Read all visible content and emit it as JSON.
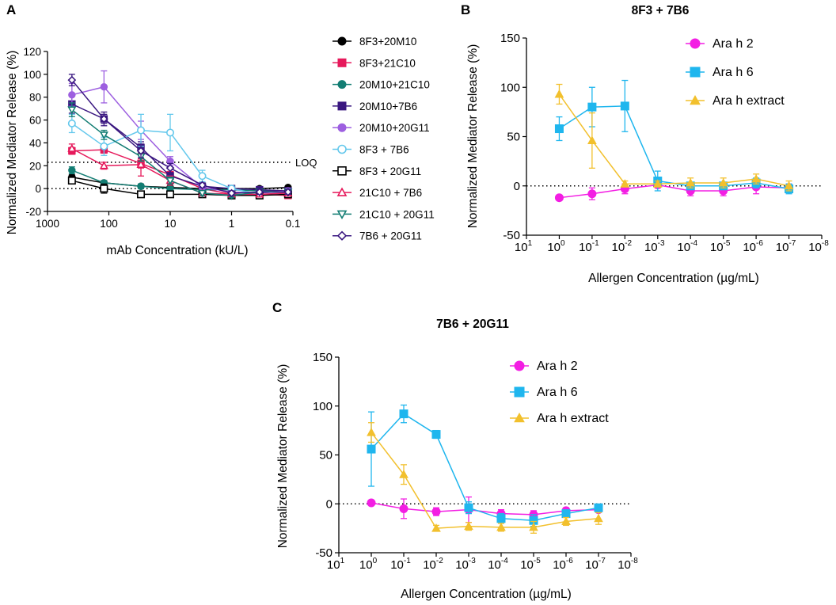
{
  "chart_data": [
    {
      "panel": "A",
      "type": "line",
      "title": "",
      "xlabel": "mAb Concentration (kU/L)",
      "ylabel": "Normalized Mediator Release (%)",
      "xscale": "log-reversed",
      "xlim": [
        1000,
        0.1
      ],
      "ylim": [
        -20,
        120
      ],
      "x_ticks": [
        1000,
        100,
        10,
        1,
        0.1
      ],
      "x_tick_labels": [
        "1000",
        "100",
        "10",
        "1",
        "0.1"
      ],
      "y_ticks": [
        -20,
        0,
        20,
        40,
        60,
        80,
        100,
        120
      ],
      "y_tick_labels": [
        "-20",
        "0",
        "20",
        "40",
        "60",
        "80",
        "100",
        "120"
      ],
      "reference_lines": [
        {
          "y": 0,
          "label": ""
        },
        {
          "y": 23,
          "label": "LOQ"
        }
      ],
      "x": [
        400,
        120,
        30,
        10,
        3,
        1,
        0.35,
        0.12
      ],
      "series": [
        {
          "name": "8F3+20M10",
          "color": "#000000",
          "marker": "circle-filled",
          "values": [
            10,
            5,
            2,
            1,
            0,
            0,
            0,
            1
          ],
          "errors": [
            2,
            2,
            1,
            1,
            1,
            1,
            1,
            1
          ]
        },
        {
          "name": "8F3+21C10",
          "color": "#e6195b",
          "marker": "square-filled",
          "values": [
            33,
            34,
            22,
            12,
            0,
            -5,
            -5,
            -6
          ],
          "errors": [
            3,
            3,
            4,
            3,
            2,
            2,
            2,
            2
          ]
        },
        {
          "name": "20M10+21C10",
          "color": "#137d73",
          "marker": "circle-filled",
          "values": [
            16,
            5,
            2,
            0,
            -1,
            -1,
            -2,
            -2
          ],
          "errors": [
            3,
            2,
            2,
            1,
            1,
            1,
            1,
            1
          ]
        },
        {
          "name": "20M10+7B6",
          "color": "#3a1780",
          "marker": "square-filled",
          "values": [
            74,
            61,
            36,
            11,
            2,
            0,
            -1,
            -2
          ],
          "errors": [
            8,
            6,
            5,
            3,
            2,
            2,
            1,
            1
          ]
        },
        {
          "name": "20M10+20G11",
          "color": "#9d5fe0",
          "marker": "circle-filled",
          "values": [
            82,
            89,
            51,
            24,
            1,
            -3,
            -4,
            -2
          ],
          "errors": [
            10,
            14,
            8,
            4,
            3,
            2,
            2,
            2
          ]
        },
        {
          "name": "8F3 + 7B6",
          "color": "#64c8ec",
          "marker": "circle-open",
          "values": [
            57,
            37,
            51,
            49,
            11,
            0,
            -5,
            -4
          ],
          "errors": [
            8,
            8,
            14,
            16,
            5,
            2,
            2,
            2
          ]
        },
        {
          "name": "8F3 + 20G11",
          "color": "#000000",
          "marker": "square-open",
          "values": [
            7,
            0,
            -5,
            -5,
            -5,
            -6,
            -6,
            -5
          ],
          "errors": [
            2,
            4,
            2,
            2,
            2,
            2,
            2,
            2
          ]
        },
        {
          "name": "21C10 + 7B6",
          "color": "#e6195b",
          "marker": "triangle-open",
          "values": [
            35,
            20,
            21,
            7,
            -4,
            -5,
            -5,
            -4
          ],
          "errors": [
            4,
            3,
            10,
            4,
            2,
            2,
            2,
            2
          ]
        },
        {
          "name": "21C10 + 20G11",
          "color": "#137d73",
          "marker": "triangle-down-open",
          "values": [
            69,
            47,
            28,
            7,
            -4,
            -6,
            -3,
            -3
          ],
          "errors": [
            6,
            4,
            4,
            3,
            2,
            2,
            2,
            2
          ]
        },
        {
          "name": "7B6 + 20G11",
          "color": "#3a1780",
          "marker": "diamond-open",
          "values": [
            95,
            61,
            33,
            18,
            3,
            -4,
            -3,
            -3
          ],
          "errors": [
            5,
            4,
            6,
            4,
            2,
            2,
            2,
            2
          ]
        }
      ]
    },
    {
      "panel": "B",
      "type": "line",
      "title": "8F3 + 7B6",
      "xlabel": "Allergen Concentration (µg/mL)",
      "ylabel": "Normalized Mediator Release (%)",
      "xscale": "log-reversed",
      "ylim": [
        -50,
        150
      ],
      "x_ticks": [
        1,
        0,
        -1,
        -2,
        -3,
        -4,
        -5,
        -6,
        -7,
        -8
      ],
      "x_tick_labels": [
        "10",
        "10",
        "10",
        "10",
        "10",
        "10",
        "10",
        "10",
        "10",
        "10"
      ],
      "x_tick_exponents": [
        "1",
        "0",
        "-1",
        "-2",
        "-3",
        "-4",
        "-5",
        "-6",
        "-7",
        "-8"
      ],
      "y_ticks": [
        -50,
        0,
        50,
        100,
        150
      ],
      "y_tick_labels": [
        "-50",
        "0",
        "50",
        "100",
        "150"
      ],
      "x": [
        0,
        -1,
        -2,
        -3,
        -4,
        -5,
        -6,
        -7
      ],
      "series": [
        {
          "name": "Ara h 2",
          "color": "#f31ee3",
          "marker": "circle-filled",
          "values": [
            -12,
            -8,
            -3,
            1,
            -5,
            -5,
            -1,
            -2
          ],
          "errors": [
            2,
            6,
            5,
            3,
            5,
            5,
            7,
            4
          ]
        },
        {
          "name": "Ara h 6",
          "color": "#1fb6ee",
          "marker": "square-filled",
          "values": [
            58,
            80,
            81,
            5,
            0,
            0,
            3,
            -3
          ],
          "errors": [
            12,
            20,
            26,
            10,
            3,
            3,
            5,
            5
          ]
        },
        {
          "name": "Ara h extract",
          "color": "#f2c02d",
          "marker": "triangle-filled",
          "values": [
            93,
            46,
            2,
            2,
            3,
            3,
            7,
            0
          ],
          "errors": [
            10,
            28,
            3,
            3,
            5,
            5,
            5,
            5
          ]
        }
      ]
    },
    {
      "panel": "C",
      "type": "line",
      "title": "7B6 + 20G11",
      "xlabel": "Allergen Concentration (µg/mL)",
      "ylabel": "Normalized Mediator Release (%)",
      "xscale": "log-reversed",
      "ylim": [
        -50,
        150
      ],
      "x_ticks": [
        1,
        0,
        -1,
        -2,
        -3,
        -4,
        -5,
        -6,
        -7,
        -8
      ],
      "x_tick_labels": [
        "10",
        "10",
        "10",
        "10",
        "10",
        "10",
        "10",
        "10",
        "10",
        "10"
      ],
      "x_tick_exponents": [
        "1",
        "0",
        "-1",
        "-2",
        "-3",
        "-4",
        "-5",
        "-6",
        "-7",
        "-8"
      ],
      "y_ticks": [
        -50,
        0,
        50,
        100,
        150
      ],
      "y_tick_labels": [
        "-50",
        "0",
        "50",
        "100",
        "150"
      ],
      "x": [
        0,
        -1,
        -2,
        -3,
        -4,
        -5,
        -6,
        -7
      ],
      "series": [
        {
          "name": "Ara h 2",
          "color": "#f31ee3",
          "marker": "circle-filled",
          "values": [
            1,
            -5,
            -8,
            -6,
            -10,
            -11,
            -7,
            -6
          ],
          "errors": [
            2,
            10,
            4,
            13,
            4,
            4,
            3,
            3
          ]
        },
        {
          "name": "Ara h 6",
          "color": "#1fb6ee",
          "marker": "square-filled",
          "values": [
            56,
            92,
            71,
            -4,
            -15,
            -17,
            -10,
            -4
          ],
          "errors": [
            38,
            9,
            4,
            6,
            5,
            6,
            3,
            3
          ]
        },
        {
          "name": "Ara h extract",
          "color": "#f2c02d",
          "marker": "triangle-filled",
          "values": [
            73,
            30,
            -25,
            -23,
            -24,
            -24,
            -18,
            -15
          ],
          "errors": [
            10,
            10,
            3,
            4,
            4,
            6,
            4,
            6
          ]
        }
      ]
    }
  ]
}
